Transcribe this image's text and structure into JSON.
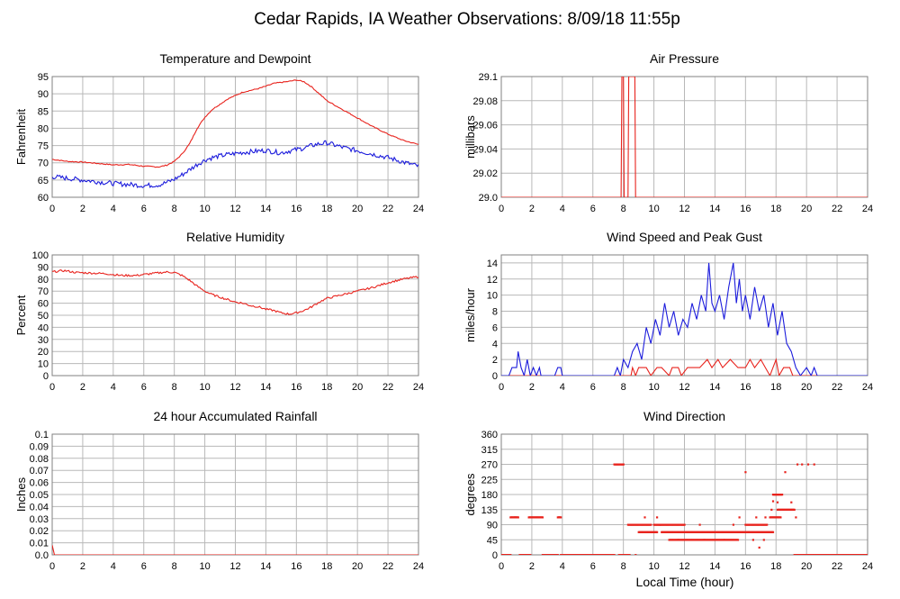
{
  "page": {
    "title": "Cedar Rapids, IA Weather Observations: 8/09/18 11:55p",
    "x_axis_label": "Local Time (hour)"
  },
  "colors": {
    "red": "#e8231d",
    "blue": "#1c1cdc",
    "grid": "#b8b8b8",
    "frame": "#808080"
  },
  "chart_data": [
    {
      "id": "temp",
      "type": "line",
      "title": "Temperature and Dewpoint",
      "ylabel": "Fahrenheit",
      "xlim": [
        0,
        24
      ],
      "xticks": [
        0,
        2,
        4,
        6,
        8,
        10,
        12,
        14,
        16,
        18,
        20,
        22,
        24
      ],
      "ylim": [
        60,
        95
      ],
      "yticks": [
        60,
        65,
        70,
        75,
        80,
        85,
        90,
        95
      ],
      "ytick_labels": [
        "60",
        "65",
        "70",
        "75",
        "80",
        "85",
        "90",
        "95"
      ],
      "series": [
        {
          "color": "#e8231d",
          "noise": 0.15,
          "x": [
            0,
            1,
            2,
            3,
            4,
            5,
            6,
            7,
            7.5,
            8,
            8.5,
            9,
            9.5,
            10,
            10.5,
            11,
            11.5,
            12,
            12.5,
            13,
            13.5,
            14,
            14.5,
            15,
            15.5,
            16,
            16.5,
            17,
            17.5,
            18,
            19,
            20,
            21,
            22,
            23,
            24
          ],
          "y": [
            71,
            70.4,
            70.2,
            69.8,
            69.4,
            69.5,
            69,
            68.8,
            69.3,
            70.4,
            72.5,
            75.5,
            80,
            83.2,
            85.5,
            87,
            88.5,
            89.5,
            90.5,
            91,
            91.5,
            92.2,
            93,
            93.3,
            93.6,
            94,
            93.5,
            92,
            90,
            88,
            85.5,
            83,
            80.5,
            78.3,
            76.5,
            75.3
          ]
        },
        {
          "color": "#1c1cdc",
          "noise": 0.7,
          "x": [
            0,
            1,
            2,
            3,
            4,
            5,
            6,
            7,
            7.5,
            8,
            8.5,
            9,
            9.5,
            10,
            10.5,
            11,
            11.5,
            12,
            12.5,
            13,
            13.5,
            14,
            14.5,
            15,
            15.5,
            16,
            16.5,
            17,
            17.5,
            18,
            19,
            20,
            21,
            22,
            23,
            24
          ],
          "y": [
            66,
            65.5,
            65,
            64.5,
            64,
            63.7,
            63.4,
            63.6,
            64.3,
            65.2,
            66.5,
            68,
            69.5,
            70.8,
            71.5,
            72,
            72.4,
            72.7,
            73,
            73.2,
            73.4,
            73.6,
            73.2,
            72.9,
            73.4,
            73.8,
            74.3,
            75,
            75.5,
            75.8,
            74.5,
            73.5,
            72.5,
            71.5,
            70.2,
            69
          ]
        }
      ]
    },
    {
      "id": "pressure",
      "type": "line",
      "title": "Air Pressure",
      "ylabel": "millibars",
      "xlim": [
        0,
        24
      ],
      "xticks": [
        0,
        2,
        4,
        6,
        8,
        10,
        12,
        14,
        16,
        18,
        20,
        22,
        24
      ],
      "ylim": [
        29.0,
        29.1
      ],
      "yticks": [
        29.0,
        29.02,
        29.04,
        29.06,
        29.08,
        29.1
      ],
      "ytick_labels": [
        "29.0",
        "29.02",
        "29.04",
        "29.06",
        "29.08",
        "29.1"
      ],
      "series": [
        {
          "color": "#e8231d",
          "noise": 0,
          "x": [
            0,
            7.85,
            7.9,
            8.0,
            8.05,
            8.3,
            8.35,
            8.75,
            8.8,
            24
          ],
          "y": [
            29.0,
            29.0,
            29.11,
            29.11,
            29.0,
            29.0,
            29.11,
            29.11,
            29.0,
            29.0
          ]
        }
      ]
    },
    {
      "id": "humidity",
      "type": "line",
      "title": "Relative Humidity",
      "ylabel": "Percent",
      "xlim": [
        0,
        24
      ],
      "xticks": [
        0,
        2,
        4,
        6,
        8,
        10,
        12,
        14,
        16,
        18,
        20,
        22,
        24
      ],
      "ylim": [
        0,
        100
      ],
      "yticks": [
        0,
        10,
        20,
        30,
        40,
        50,
        60,
        70,
        80,
        90,
        100
      ],
      "ytick_labels": [
        "0",
        "10",
        "20",
        "30",
        "40",
        "50",
        "60",
        "70",
        "80",
        "90",
        "100"
      ],
      "series": [
        {
          "color": "#e8231d",
          "noise": 0.8,
          "x": [
            0,
            0.8,
            1.5,
            2.5,
            3.5,
            4.5,
            5.5,
            6.5,
            7.5,
            8,
            8.5,
            9,
            9.5,
            10,
            10.5,
            11,
            11.5,
            12,
            12.5,
            13,
            13.5,
            14,
            14.5,
            15,
            15.5,
            16,
            16.5,
            17,
            17.5,
            18,
            19,
            20,
            21,
            22,
            23,
            24
          ],
          "y": [
            86,
            87,
            85.5,
            85,
            84.5,
            83,
            83,
            84.5,
            85.8,
            85.5,
            83,
            79,
            74,
            70,
            67,
            65,
            63,
            61,
            60,
            58,
            57,
            55,
            54,
            52,
            51,
            52,
            54,
            57,
            61,
            64,
            67,
            70,
            73,
            77,
            80,
            82
          ]
        }
      ]
    },
    {
      "id": "wind",
      "type": "line",
      "title": "Wind Speed and Peak Gust",
      "ylabel": "miles/hour",
      "xlim": [
        0,
        24
      ],
      "xticks": [
        0,
        2,
        4,
        6,
        8,
        10,
        12,
        14,
        16,
        18,
        20,
        22,
        24
      ],
      "ylim": [
        0,
        15
      ],
      "yticks": [
        0,
        2,
        4,
        6,
        8,
        10,
        12,
        14
      ],
      "ytick_labels": [
        "0",
        "2",
        "4",
        "6",
        "8",
        "10",
        "12",
        "14"
      ],
      "series": [
        {
          "color": "#e8231d",
          "noise": 0,
          "x": [
            0,
            8.5,
            8.6,
            8.8,
            9,
            9.5,
            9.8,
            10.2,
            10.5,
            11,
            11.2,
            11.6,
            11.8,
            12.2,
            12.5,
            13,
            13.5,
            13.8,
            14.2,
            14.5,
            15,
            15.5,
            16,
            16.3,
            16.6,
            17,
            17.3,
            17.6,
            18,
            18.2,
            18.5,
            18.9,
            19.1,
            24
          ],
          "y": [
            0,
            0,
            1,
            0,
            1,
            1,
            0,
            1,
            1,
            0,
            1,
            1,
            0,
            1,
            1,
            1,
            2,
            1,
            2,
            1,
            2,
            1,
            1,
            2,
            1,
            2,
            1,
            0,
            2,
            0,
            1,
            1,
            0,
            0
          ]
        },
        {
          "color": "#1c1cdc",
          "noise": 0,
          "x": [
            0,
            0.5,
            0.7,
            1,
            1.1,
            1.3,
            1.5,
            1.7,
            1.9,
            2.1,
            2.3,
            2.5,
            2.6,
            3,
            3.5,
            3.7,
            3.9,
            4,
            7.4,
            7.6,
            7.8,
            8,
            8.3,
            8.6,
            8.9,
            9.2,
            9.5,
            9.8,
            10.1,
            10.4,
            10.7,
            11,
            11.3,
            11.6,
            11.9,
            12.2,
            12.5,
            12.8,
            13.1,
            13.4,
            13.6,
            13.8,
            14,
            14.3,
            14.6,
            14.9,
            15.2,
            15.4,
            15.6,
            15.8,
            16,
            16.3,
            16.6,
            16.9,
            17.2,
            17.5,
            17.8,
            18.1,
            18.4,
            18.7,
            19,
            19.3,
            19.6,
            20,
            20.3,
            20.5,
            20.7,
            24
          ],
          "y": [
            0,
            0,
            1,
            1,
            3,
            1,
            0,
            2,
            0,
            1,
            0,
            1,
            0,
            0,
            0,
            1,
            1,
            0,
            0,
            1,
            0,
            2,
            1,
            3,
            4,
            2,
            6,
            4,
            7,
            5,
            9,
            6,
            8,
            5,
            7,
            6,
            9,
            7,
            10,
            8,
            14,
            9,
            8,
            10,
            7,
            11,
            14,
            9,
            12,
            8,
            10,
            7,
            11,
            8,
            10,
            6,
            9,
            5,
            8,
            4,
            3,
            1,
            0,
            1,
            0,
            1,
            0,
            0
          ]
        }
      ]
    },
    {
      "id": "rain",
      "type": "line",
      "title": "24 hour Accumulated Rainfall",
      "ylabel": "Inches",
      "xlim": [
        0,
        24
      ],
      "xticks": [
        0,
        2,
        4,
        6,
        8,
        10,
        12,
        14,
        16,
        18,
        20,
        22,
        24
      ],
      "ylim": [
        0,
        0.1
      ],
      "yticks": [
        0,
        0.01,
        0.02,
        0.03,
        0.04,
        0.05,
        0.06,
        0.07,
        0.08,
        0.09,
        0.1
      ],
      "ytick_labels": [
        "0.0",
        "0.01",
        "0.02",
        "0.03",
        "0.04",
        "0.05",
        "0.06",
        "0.07",
        "0.08",
        "0.09",
        "0.1"
      ],
      "series": [
        {
          "color": "#e8231d",
          "noise": 0,
          "x": [
            0,
            0.15,
            24
          ],
          "y": [
            0.008,
            0,
            0
          ]
        }
      ]
    },
    {
      "id": "direction",
      "type": "scatter",
      "title": "Wind Direction",
      "ylabel": "degrees",
      "xlim": [
        0,
        24
      ],
      "xticks": [
        0,
        2,
        4,
        6,
        8,
        10,
        12,
        14,
        16,
        18,
        20,
        22,
        24
      ],
      "ylim": [
        0,
        360
      ],
      "yticks": [
        0,
        45,
        90,
        135,
        180,
        225,
        270,
        315,
        360
      ],
      "ytick_labels": [
        "0",
        "45",
        "90",
        "135",
        "180",
        "225",
        "270",
        "315",
        "360"
      ],
      "color": "#e8231d",
      "runs": [
        {
          "x0": 0,
          "x1": 0.6,
          "y": 0
        },
        {
          "x0": 0.6,
          "x1": 1.1,
          "y": 112
        },
        {
          "x0": 1.2,
          "x1": 1.9,
          "y": 0
        },
        {
          "x0": 1.8,
          "x1": 2.7,
          "y": 112
        },
        {
          "x0": 2.7,
          "x1": 3.7,
          "y": 0
        },
        {
          "x0": 3.7,
          "x1": 3.9,
          "y": 112
        },
        {
          "x0": 3.9,
          "x1": 7.4,
          "y": 0
        },
        {
          "x0": 7.4,
          "x1": 8.0,
          "y": 270
        },
        {
          "x0": 7.7,
          "x1": 8.4,
          "y": 0
        },
        {
          "x0": 8.3,
          "x1": 9.8,
          "y": 90
        },
        {
          "x0": 9.0,
          "x1": 10.2,
          "y": 68
        },
        {
          "x0": 10.0,
          "x1": 12.0,
          "y": 90
        },
        {
          "x0": 10.5,
          "x1": 16.2,
          "y": 68
        },
        {
          "x0": 11.0,
          "x1": 15.5,
          "y": 45
        },
        {
          "x0": 16.0,
          "x1": 17.4,
          "y": 90
        },
        {
          "x0": 16.2,
          "x1": 17.8,
          "y": 68
        },
        {
          "x0": 17.6,
          "x1": 18.3,
          "y": 112
        },
        {
          "x0": 17.8,
          "x1": 18.4,
          "y": 180
        },
        {
          "x0": 18.1,
          "x1": 19.2,
          "y": 135
        },
        {
          "x0": 19.2,
          "x1": 24,
          "y": 0
        }
      ],
      "points": [
        [
          0.2,
          0
        ],
        [
          0.9,
          112
        ],
        [
          3.8,
          112
        ],
        [
          8.8,
          0
        ],
        [
          9.4,
          112
        ],
        [
          10.2,
          112
        ],
        [
          10.4,
          90
        ],
        [
          11.6,
          45
        ],
        [
          13.0,
          90
        ],
        [
          13.3,
          45
        ],
        [
          14.6,
          45
        ],
        [
          15.2,
          90
        ],
        [
          15.6,
          112
        ],
        [
          16.0,
          247
        ],
        [
          16.5,
          45
        ],
        [
          16.7,
          112
        ],
        [
          16.9,
          22
        ],
        [
          17.2,
          45
        ],
        [
          17.3,
          112
        ],
        [
          17.7,
          135
        ],
        [
          17.8,
          160
        ],
        [
          18.1,
          157
        ],
        [
          18.6,
          247
        ],
        [
          19.0,
          157
        ],
        [
          19.3,
          112
        ],
        [
          19.4,
          270
        ],
        [
          19.7,
          270
        ],
        [
          20.1,
          270
        ],
        [
          20.5,
          270
        ]
      ]
    }
  ]
}
